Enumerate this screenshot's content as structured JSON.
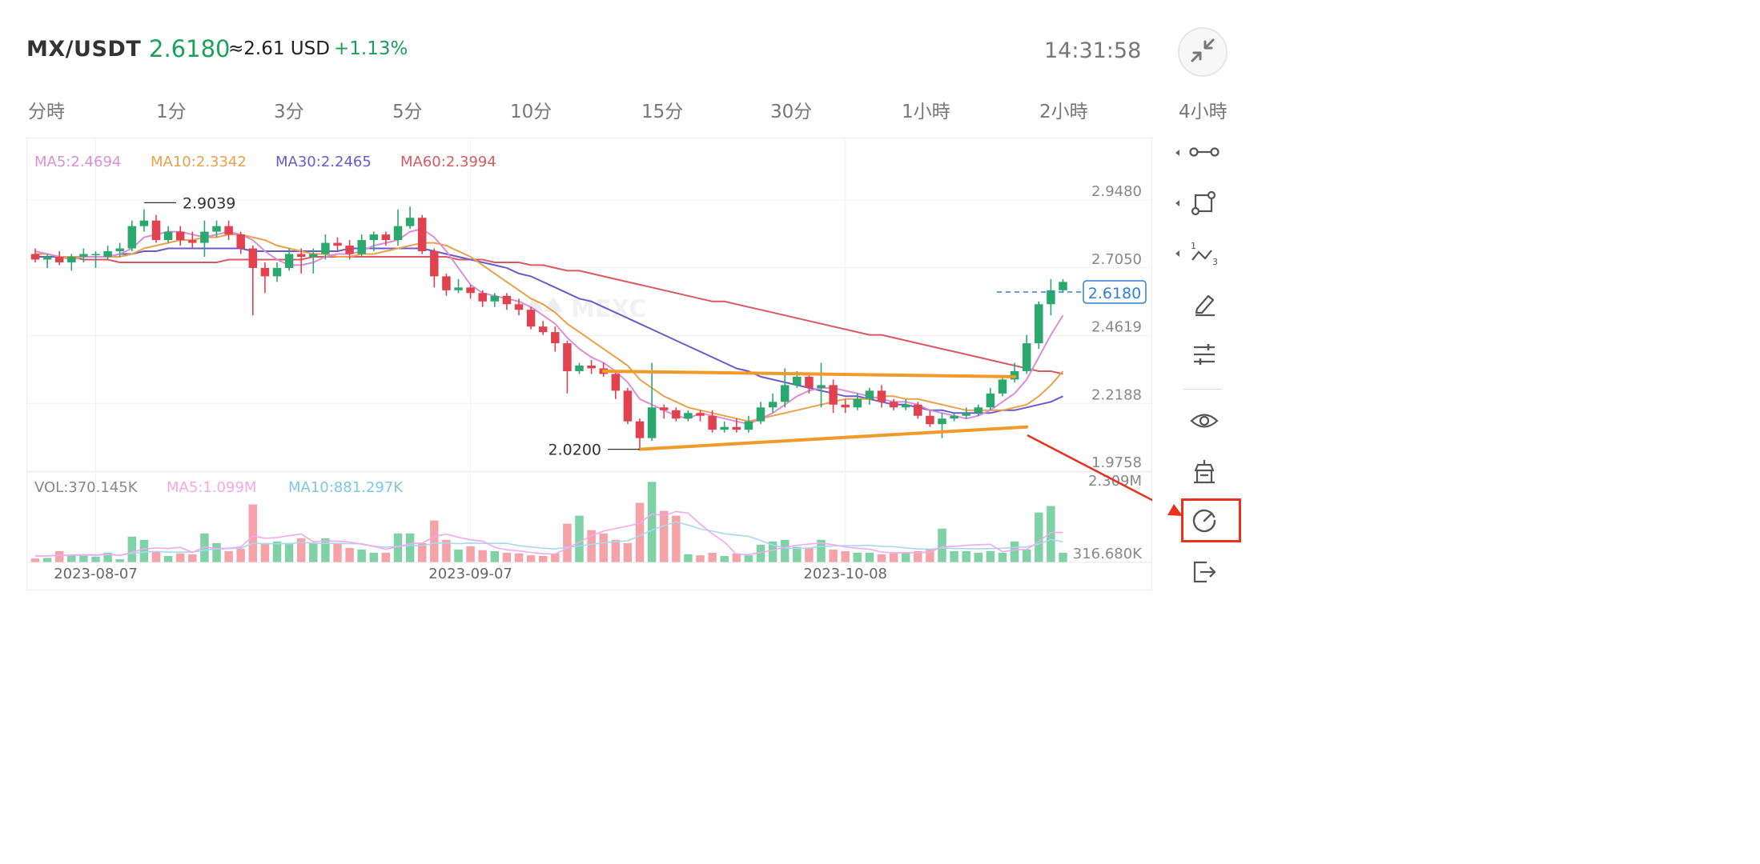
{
  "header": {
    "pair": "MX/USDT",
    "price": "2.6180",
    "usd_approx": "≈2.61 USD",
    "change": "+1.13%",
    "time": "14:31:58",
    "collapse_icon": "collapse-icon"
  },
  "tabs": [
    "分時",
    "1分",
    "3分",
    "5分",
    "10分",
    "15分",
    "30分",
    "1小時",
    "2小時",
    "4小時"
  ],
  "toolbar": {
    "icons": [
      "line-segment-icon",
      "rectangle-icon",
      "wave-pattern-icon",
      "pencil-icon",
      "indicator-settings-icon",
      "eye-icon",
      "landmark-icon",
      "gauge-icon",
      "logout-icon"
    ]
  },
  "colors": {
    "up": "#2ba86d",
    "down": "#e0434f",
    "ma5": "#d98fd8",
    "ma10": "#eba04a",
    "ma30": "#6c5acd",
    "ma60": "#d85a60",
    "trendline": "#f19a2a",
    "vol_ma5": "#f2a8ef",
    "vol_ma10": "#a8d8ee",
    "annotation_red": "#e8321e",
    "price_tag": "#2f7fd6"
  },
  "legend": {
    "ma5": "MA5:2.4694",
    "ma10": "MA10:2.3342",
    "ma30": "MA30:2.2465",
    "ma60": "MA60:2.3994"
  },
  "vol_legend": {
    "vol": "VOL:370.145K",
    "ma5": "MA5:1.099M",
    "ma10": "MA10:881.297K"
  },
  "watermark": "MEXC",
  "price_tag": "2.6180",
  "chart_data": {
    "type": "candlestick",
    "ylim": [
      1.9758,
      2.948
    ],
    "ytick_labels": [
      "2.9480",
      "2.7050",
      "2.4619",
      "2.2188",
      "1.9758"
    ],
    "xtick_labels": [
      "2023-08-07",
      "2023-09-07",
      "2023-10-08"
    ],
    "xtick_index": [
      5,
      36,
      67
    ],
    "high_marker": {
      "label": "2.9039",
      "value": 2.9039,
      "index": 9
    },
    "low_marker": {
      "label": "2.0200",
      "value": 2.02,
      "index": 50
    },
    "candles": [
      [
        2.72,
        2.7,
        2.74,
        2.69
      ],
      [
        2.7,
        2.71,
        2.72,
        2.67
      ],
      [
        2.71,
        2.69,
        2.73,
        2.68
      ],
      [
        2.69,
        2.71,
        2.72,
        2.66
      ],
      [
        2.71,
        2.72,
        2.74,
        2.69
      ],
      [
        2.72,
        2.72,
        2.73,
        2.67
      ],
      [
        2.71,
        2.73,
        2.75,
        2.7
      ],
      [
        2.73,
        2.74,
        2.76,
        2.71
      ],
      [
        2.74,
        2.82,
        2.84,
        2.73
      ],
      [
        2.82,
        2.84,
        2.88,
        2.8
      ],
      [
        2.84,
        2.77,
        2.86,
        2.76
      ],
      [
        2.77,
        2.8,
        2.82,
        2.76
      ],
      [
        2.8,
        2.77,
        2.82,
        2.75
      ],
      [
        2.77,
        2.76,
        2.8,
        2.74
      ],
      [
        2.76,
        2.8,
        2.84,
        2.71
      ],
      [
        2.8,
        2.82,
        2.84,
        2.78
      ],
      [
        2.82,
        2.79,
        2.84,
        2.77
      ],
      [
        2.79,
        2.74,
        2.8,
        2.72
      ],
      [
        2.74,
        2.67,
        2.75,
        2.5
      ],
      [
        2.67,
        2.64,
        2.69,
        2.58
      ],
      [
        2.64,
        2.67,
        2.69,
        2.62
      ],
      [
        2.67,
        2.72,
        2.74,
        2.66
      ],
      [
        2.72,
        2.71,
        2.74,
        2.65
      ],
      [
        2.71,
        2.72,
        2.74,
        2.65
      ],
      [
        2.72,
        2.76,
        2.79,
        2.7
      ],
      [
        2.76,
        2.75,
        2.78,
        2.73
      ],
      [
        2.75,
        2.72,
        2.77,
        2.7
      ],
      [
        2.72,
        2.77,
        2.79,
        2.71
      ],
      [
        2.77,
        2.79,
        2.8,
        2.73
      ],
      [
        2.79,
        2.77,
        2.8,
        2.75
      ],
      [
        2.77,
        2.82,
        2.88,
        2.75
      ],
      [
        2.82,
        2.85,
        2.89,
        2.81
      ],
      [
        2.85,
        2.73,
        2.86,
        2.72
      ],
      [
        2.73,
        2.64,
        2.74,
        2.6
      ],
      [
        2.64,
        2.59,
        2.65,
        2.57
      ],
      [
        2.59,
        2.6,
        2.63,
        2.58
      ],
      [
        2.6,
        2.58,
        2.61,
        2.56
      ],
      [
        2.58,
        2.55,
        2.59,
        2.53
      ],
      [
        2.55,
        2.57,
        2.58,
        2.53
      ],
      [
        2.57,
        2.54,
        2.58,
        2.52
      ],
      [
        2.54,
        2.52,
        2.56,
        2.5
      ],
      [
        2.52,
        2.46,
        2.53,
        2.45
      ],
      [
        2.46,
        2.44,
        2.48,
        2.43
      ],
      [
        2.44,
        2.4,
        2.46,
        2.37
      ],
      [
        2.4,
        2.3,
        2.41,
        2.22
      ],
      [
        2.3,
        2.32,
        2.33,
        2.29
      ],
      [
        2.32,
        2.31,
        2.34,
        2.29
      ],
      [
        2.31,
        2.29,
        2.33,
        2.28
      ],
      [
        2.29,
        2.23,
        2.3,
        2.2
      ],
      [
        2.23,
        2.12,
        2.24,
        2.11
      ],
      [
        2.12,
        2.06,
        2.13,
        2.02
      ],
      [
        2.06,
        2.17,
        2.33,
        2.05
      ],
      [
        2.17,
        2.16,
        2.18,
        2.13
      ],
      [
        2.16,
        2.13,
        2.17,
        2.12
      ],
      [
        2.13,
        2.15,
        2.16,
        2.12
      ],
      [
        2.15,
        2.14,
        2.16,
        2.12
      ],
      [
        2.14,
        2.09,
        2.16,
        2.08
      ],
      [
        2.09,
        2.1,
        2.12,
        2.08
      ],
      [
        2.1,
        2.09,
        2.13,
        2.08
      ],
      [
        2.09,
        2.12,
        2.14,
        2.08
      ],
      [
        2.12,
        2.17,
        2.19,
        2.11
      ],
      [
        2.17,
        2.19,
        2.22,
        2.15
      ],
      [
        2.19,
        2.25,
        2.31,
        2.17
      ],
      [
        2.25,
        2.28,
        2.3,
        2.24
      ],
      [
        2.28,
        2.24,
        2.29,
        2.22
      ],
      [
        2.24,
        2.25,
        2.33,
        2.17
      ],
      [
        2.25,
        2.18,
        2.27,
        2.15
      ],
      [
        2.18,
        2.17,
        2.2,
        2.15
      ],
      [
        2.17,
        2.2,
        2.22,
        2.16
      ],
      [
        2.2,
        2.23,
        2.24,
        2.18
      ],
      [
        2.23,
        2.19,
        2.25,
        2.17
      ],
      [
        2.19,
        2.17,
        2.2,
        2.16
      ],
      [
        2.17,
        2.18,
        2.2,
        2.16
      ],
      [
        2.18,
        2.14,
        2.19,
        2.13
      ],
      [
        2.14,
        2.11,
        2.16,
        2.1
      ],
      [
        2.11,
        2.13,
        2.15,
        2.06
      ],
      [
        2.13,
        2.14,
        2.15,
        2.12
      ],
      [
        2.14,
        2.15,
        2.17,
        2.13
      ],
      [
        2.15,
        2.17,
        2.18,
        2.14
      ],
      [
        2.17,
        2.22,
        2.24,
        2.16
      ],
      [
        2.22,
        2.27,
        2.28,
        2.21
      ],
      [
        2.27,
        2.3,
        2.33,
        2.26
      ],
      [
        2.3,
        2.4,
        2.43,
        2.29
      ],
      [
        2.4,
        2.54,
        2.55,
        2.38
      ],
      [
        2.54,
        2.59,
        2.63,
        2.5
      ],
      [
        2.59,
        2.62,
        2.63,
        2.58
      ]
    ],
    "ma5": [
      2.73,
      2.72,
      2.71,
      2.7,
      2.71,
      2.71,
      2.71,
      2.72,
      2.74,
      2.78,
      2.79,
      2.8,
      2.8,
      2.79,
      2.78,
      2.79,
      2.8,
      2.79,
      2.77,
      2.73,
      2.7,
      2.68,
      2.68,
      2.69,
      2.71,
      2.72,
      2.72,
      2.73,
      2.75,
      2.76,
      2.77,
      2.8,
      2.81,
      2.78,
      2.73,
      2.67,
      2.61,
      2.58,
      2.57,
      2.56,
      2.55,
      2.53,
      2.5,
      2.47,
      2.42,
      2.38,
      2.35,
      2.33,
      2.3,
      2.26,
      2.2,
      2.18,
      2.16,
      2.14,
      2.13,
      2.15,
      2.14,
      2.13,
      2.12,
      2.11,
      2.13,
      2.15,
      2.18,
      2.21,
      2.23,
      2.24,
      2.24,
      2.23,
      2.22,
      2.21,
      2.2,
      2.19,
      2.19,
      2.18,
      2.16,
      2.15,
      2.14,
      2.13,
      2.14,
      2.16,
      2.19,
      2.22,
      2.27,
      2.35,
      2.43,
      2.5
    ],
    "ma10": [
      2.72,
      2.72,
      2.71,
      2.71,
      2.71,
      2.71,
      2.71,
      2.71,
      2.72,
      2.74,
      2.75,
      2.76,
      2.77,
      2.77,
      2.78,
      2.78,
      2.79,
      2.79,
      2.78,
      2.77,
      2.75,
      2.74,
      2.73,
      2.72,
      2.72,
      2.71,
      2.71,
      2.72,
      2.72,
      2.73,
      2.74,
      2.75,
      2.76,
      2.76,
      2.75,
      2.73,
      2.71,
      2.68,
      2.65,
      2.62,
      2.59,
      2.56,
      2.54,
      2.51,
      2.47,
      2.44,
      2.41,
      2.38,
      2.35,
      2.32,
      2.27,
      2.24,
      2.21,
      2.19,
      2.17,
      2.16,
      2.15,
      2.14,
      2.13,
      2.12,
      2.13,
      2.14,
      2.15,
      2.16,
      2.17,
      2.18,
      2.19,
      2.2,
      2.2,
      2.2,
      2.21,
      2.21,
      2.2,
      2.2,
      2.19,
      2.18,
      2.17,
      2.16,
      2.16,
      2.16,
      2.16,
      2.17,
      2.18,
      2.21,
      2.25,
      2.3
    ],
    "ma30": [
      2.71,
      2.71,
      2.71,
      2.71,
      2.71,
      2.71,
      2.71,
      2.72,
      2.72,
      2.73,
      2.73,
      2.74,
      2.74,
      2.74,
      2.74,
      2.74,
      2.74,
      2.74,
      2.73,
      2.73,
      2.73,
      2.73,
      2.73,
      2.73,
      2.73,
      2.73,
      2.74,
      2.74,
      2.74,
      2.74,
      2.74,
      2.74,
      2.74,
      2.73,
      2.72,
      2.71,
      2.7,
      2.69,
      2.68,
      2.67,
      2.65,
      2.64,
      2.62,
      2.6,
      2.58,
      2.56,
      2.55,
      2.53,
      2.51,
      2.49,
      2.47,
      2.45,
      2.43,
      2.41,
      2.39,
      2.37,
      2.35,
      2.33,
      2.31,
      2.3,
      2.28,
      2.27,
      2.26,
      2.25,
      2.24,
      2.23,
      2.22,
      2.21,
      2.21,
      2.2,
      2.19,
      2.18,
      2.18,
      2.17,
      2.16,
      2.16,
      2.15,
      2.15,
      2.15,
      2.15,
      2.16,
      2.16,
      2.17,
      2.18,
      2.19,
      2.21
    ],
    "ma60": [
      2.72,
      2.72,
      2.71,
      2.71,
      2.7,
      2.7,
      2.7,
      2.69,
      2.69,
      2.69,
      2.69,
      2.69,
      2.69,
      2.69,
      2.69,
      2.69,
      2.7,
      2.7,
      2.7,
      2.7,
      2.7,
      2.7,
      2.7,
      2.71,
      2.71,
      2.71,
      2.71,
      2.71,
      2.71,
      2.71,
      2.71,
      2.71,
      2.71,
      2.71,
      2.71,
      2.7,
      2.7,
      2.7,
      2.69,
      2.69,
      2.69,
      2.68,
      2.68,
      2.67,
      2.66,
      2.66,
      2.65,
      2.64,
      2.63,
      2.62,
      2.61,
      2.6,
      2.59,
      2.58,
      2.57,
      2.56,
      2.55,
      2.55,
      2.54,
      2.53,
      2.52,
      2.51,
      2.5,
      2.49,
      2.48,
      2.47,
      2.46,
      2.45,
      2.44,
      2.43,
      2.43,
      2.42,
      2.41,
      2.4,
      2.39,
      2.38,
      2.37,
      2.36,
      2.35,
      2.34,
      2.33,
      2.32,
      2.31,
      2.3,
      2.3,
      2.29
    ],
    "trendlines": [
      {
        "from": [
          47,
          2.3
        ],
        "to": [
          81,
          2.28
        ]
      },
      {
        "from": [
          50,
          2.02
        ],
        "to": [
          82,
          2.1
        ]
      }
    ],
    "volume_ylim": [
      0,
      2.309
    ],
    "volume_ytick_labels": [
      "2.309M",
      "316.680K"
    ],
    "volume": [
      0.12,
      0.14,
      0.35,
      0.25,
      0.25,
      0.18,
      0.3,
      0.1,
      0.8,
      0.7,
      0.35,
      0.2,
      0.28,
      0.25,
      0.9,
      0.6,
      0.35,
      0.42,
      1.8,
      0.6,
      0.65,
      0.6,
      0.75,
      0.6,
      0.75,
      0.6,
      0.45,
      0.4,
      0.3,
      0.3,
      0.9,
      0.9,
      0.6,
      1.3,
      0.7,
      0.4,
      0.5,
      0.38,
      0.35,
      0.3,
      0.28,
      0.22,
      0.2,
      0.28,
      1.2,
      1.45,
      1.0,
      0.9,
      0.7,
      0.6,
      1.85,
      2.5,
      1.6,
      1.45,
      0.25,
      0.22,
      0.3,
      0.2,
      0.28,
      0.22,
      0.55,
      0.65,
      0.7,
      0.48,
      0.45,
      0.7,
      0.4,
      0.35,
      0.3,
      0.3,
      0.25,
      0.28,
      0.3,
      0.35,
      0.4,
      1.05,
      0.35,
      0.35,
      0.3,
      0.35,
      0.3,
      0.65,
      0.4,
      1.55,
      1.75,
      0.3
    ],
    "volume_ma5": [
      0.2,
      0.2,
      0.22,
      0.22,
      0.24,
      0.23,
      0.26,
      0.21,
      0.32,
      0.42,
      0.45,
      0.43,
      0.47,
      0.31,
      0.48,
      0.43,
      0.44,
      0.48,
      0.82,
      0.75,
      0.77,
      0.83,
      0.88,
      0.64,
      0.67,
      0.66,
      0.63,
      0.56,
      0.5,
      0.41,
      0.49,
      0.58,
      0.6,
      0.8,
      0.88,
      0.78,
      0.7,
      0.66,
      0.47,
      0.39,
      0.36,
      0.31,
      0.27,
      0.26,
      0.44,
      0.63,
      0.83,
      0.97,
      1.05,
      1.13,
      1.21,
      1.51,
      1.45,
      1.58,
      1.53,
      1.19,
      0.89,
      0.63,
      0.25,
      0.24,
      0.31,
      0.38,
      0.47,
      0.53,
      0.57,
      0.6,
      0.55,
      0.48,
      0.44,
      0.41,
      0.32,
      0.3,
      0.3,
      0.3,
      0.32,
      0.48,
      0.5,
      0.53,
      0.55,
      0.56,
      0.33,
      0.39,
      0.4,
      0.65,
      0.93,
      0.93
    ],
    "volume_ma10": [
      0.2,
      0.2,
      0.21,
      0.22,
      0.22,
      0.22,
      0.24,
      0.22,
      0.28,
      0.32,
      0.34,
      0.32,
      0.32,
      0.32,
      0.38,
      0.42,
      0.43,
      0.44,
      0.59,
      0.58,
      0.58,
      0.58,
      0.62,
      0.6,
      0.59,
      0.59,
      0.58,
      0.58,
      0.5,
      0.47,
      0.5,
      0.53,
      0.52,
      0.6,
      0.6,
      0.58,
      0.6,
      0.59,
      0.59,
      0.59,
      0.52,
      0.48,
      0.44,
      0.42,
      0.47,
      0.51,
      0.56,
      0.61,
      0.64,
      0.67,
      0.83,
      1.0,
      1.14,
      1.26,
      1.16,
      1.04,
      0.97,
      0.89,
      0.85,
      0.81,
      0.68,
      0.54,
      0.45,
      0.43,
      0.45,
      0.5,
      0.51,
      0.52,
      0.52,
      0.53,
      0.5,
      0.49,
      0.45,
      0.42,
      0.41,
      0.45,
      0.43,
      0.43,
      0.42,
      0.43,
      0.44,
      0.47,
      0.48,
      0.57,
      0.71,
      0.64
    ]
  }
}
